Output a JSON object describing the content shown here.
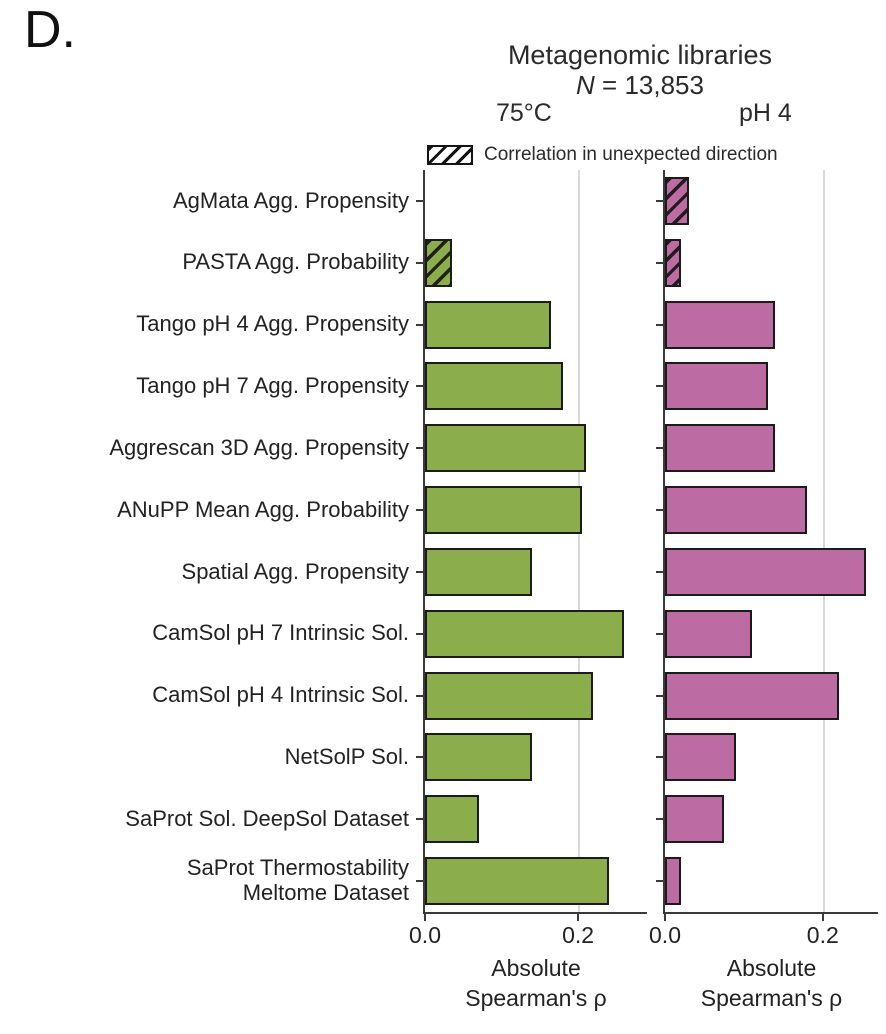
{
  "panel_label": "D.",
  "header": {
    "title": "Metagenomic libraries",
    "n_symbol": "N",
    "n_value": " = 13,853",
    "left_column": "75°C",
    "right_column": "pH 4"
  },
  "legend": {
    "label": "Correlation in unexpected direction"
  },
  "colors": {
    "green": "#8bad4b",
    "purple": "#bc6ba3",
    "hatch": "#141414",
    "gridline": "#d9d9d9",
    "axis": "#3a3a3a",
    "text": "#222222"
  },
  "chart_data": [
    {
      "type": "bar",
      "orientation": "horizontal",
      "panel": "75°C",
      "color": "#8bad4b",
      "xlabel": "Absolute\nSpearman's ρ",
      "xticks": [
        "0.0",
        "0.2"
      ],
      "xtick_values": [
        0.0,
        0.2
      ],
      "xlim": [
        0,
        0.29
      ],
      "grid": "vertical gridline at 0.2",
      "categories": [
        "AgMata Agg. Propensity",
        "PASTA Agg. Probability",
        "Tango pH 4 Agg. Propensity",
        "Tango pH 7 Agg. Propensity",
        "Aggrescan 3D Agg. Propensity",
        "ANuPP Mean Agg. Probability",
        "Spatial Agg. Propensity",
        "CamSol pH 7 Intrinsic Sol.",
        "CamSol pH 4 Intrinsic Sol.",
        "NetSolP Sol.",
        "SaProt Sol. DeepSol Dataset",
        "SaProt Thermostability\nMeltome Dataset"
      ],
      "values": [
        0.0,
        0.035,
        0.165,
        0.18,
        0.21,
        0.205,
        0.14,
        0.26,
        0.22,
        0.14,
        0.07,
        0.24
      ],
      "unexpected_direction": [
        false,
        true,
        false,
        false,
        false,
        false,
        false,
        false,
        false,
        false,
        false,
        false
      ]
    },
    {
      "type": "bar",
      "orientation": "horizontal",
      "panel": "pH 4",
      "color": "#bc6ba3",
      "xlabel": "Absolute\nSpearman's ρ",
      "xticks": [
        "0.0",
        "0.2"
      ],
      "xtick_values": [
        0.0,
        0.2
      ],
      "xlim": [
        0,
        0.27
      ],
      "grid": "vertical gridline at 0.2",
      "categories": [
        "AgMata Agg. Propensity",
        "PASTA Agg. Probability",
        "Tango pH 4 Agg. Propensity",
        "Tango pH 7 Agg. Propensity",
        "Aggrescan 3D Agg. Propensity",
        "ANuPP Mean Agg. Probability",
        "Spatial Agg. Propensity",
        "CamSol pH 7 Intrinsic Sol.",
        "CamSol pH 4 Intrinsic Sol.",
        "NetSolP Sol.",
        "SaProt Sol. DeepSol Dataset",
        "SaProt Thermostability\nMeltome Dataset"
      ],
      "values": [
        0.03,
        0.02,
        0.14,
        0.13,
        0.14,
        0.18,
        0.255,
        0.11,
        0.22,
        0.09,
        0.075,
        0.02
      ],
      "unexpected_direction": [
        true,
        true,
        false,
        false,
        false,
        false,
        false,
        false,
        false,
        false,
        false,
        false
      ]
    }
  ]
}
